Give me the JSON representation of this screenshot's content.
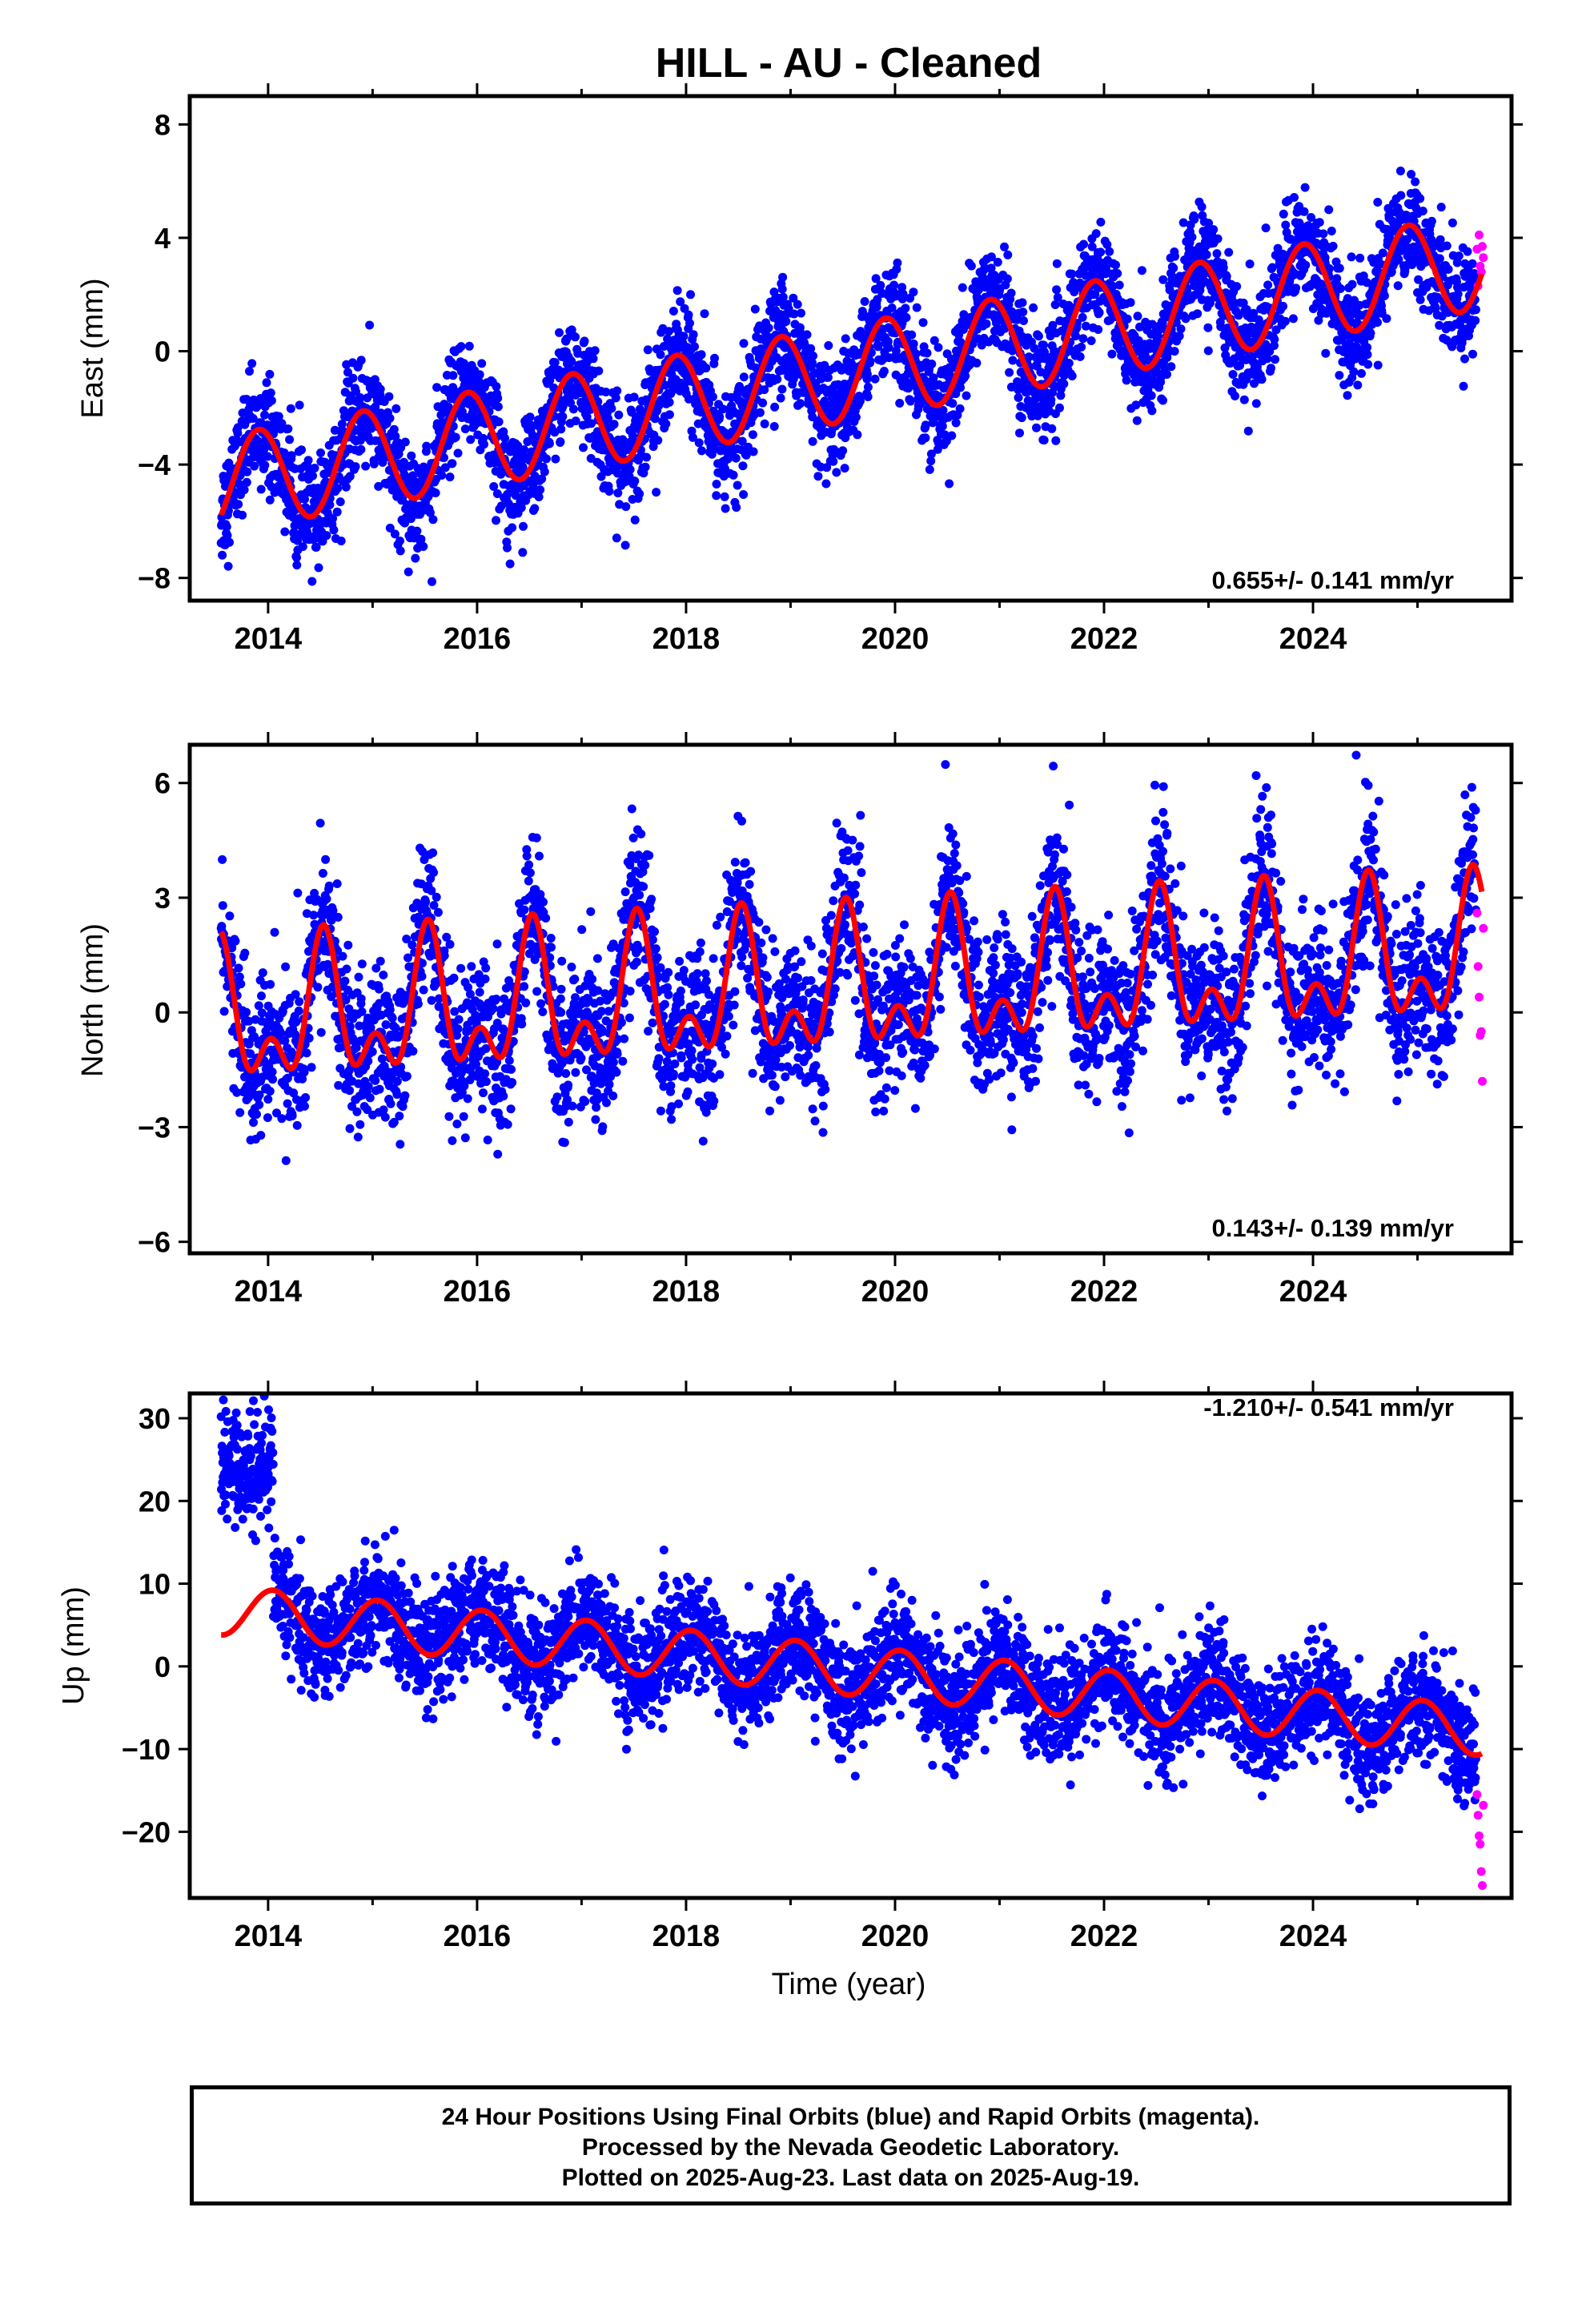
{
  "title": "HILL  - AU - Cleaned",
  "xlabel": "Time (year)",
  "footer": [
    "24 Hour Positions Using Final Orbits (blue) and Rapid Orbits (magenta).",
    "Processed by the Nevada Geodetic Laboratory.",
    "Plotted on 2025-Aug-23. Last data on 2025-Aug-19."
  ],
  "colors": {
    "final": "#0000ff",
    "rapid": "#ff00ff",
    "model": "#ff0000",
    "frame": "#000000"
  },
  "chart_data": [
    {
      "type": "scatter",
      "ylabel": "East (mm)",
      "rate_label": "0.655+/- 0.141 mm/yr",
      "xlim": [
        2013.25,
        2025.9
      ],
      "ylim": [
        -8.8,
        9.0
      ],
      "yticks": [
        -8,
        -4,
        0,
        4,
        8
      ],
      "xticks": [
        2014,
        2016,
        2018,
        2020,
        2022,
        2024
      ],
      "model": {
        "x0": 2013.55,
        "offset": -4.7,
        "rate": 0.655,
        "annual_amp": 1.7,
        "annual_phase": 2013.91,
        "semi_amp": 0.0,
        "semi_phase": 2013.9,
        "scatter_sd": 0.95
      },
      "series": [
        {
          "x": [
            2013.55,
            2013.9,
            2014.4,
            2014.9,
            2015.4,
            2015.9,
            2016.4,
            2016.9,
            2017.4,
            2017.9,
            2018.4,
            2018.9,
            2019.4,
            2019.9,
            2020.4,
            2020.9,
            2021.4,
            2021.9,
            2022.4,
            2022.9,
            2023.4,
            2023.9,
            2024.4,
            2024.9,
            2025.4,
            2025.62
          ],
          "y": [
            -5.6,
            -1.9,
            -5.2,
            -1.2,
            -4.5,
            -0.6,
            -3.9,
            0.1,
            -3.2,
            0.7,
            -2.5,
            1.4,
            -1.9,
            2.1,
            -1.2,
            2.7,
            -0.6,
            3.4,
            0.1,
            4.0,
            0.7,
            4.7,
            1.4,
            5.3,
            2.0,
            2.9
          ]
        }
      ],
      "rapid": {
        "x": [
          2025.57,
          2025.58,
          2025.59,
          2025.6,
          2025.61,
          2025.62,
          2025.63
        ],
        "y": [
          3.6,
          2.3,
          4.1,
          3.0,
          2.8,
          3.7,
          3.3
        ]
      }
    },
    {
      "type": "scatter",
      "ylabel": "North (mm)",
      "rate_label": "0.143+/- 0.139 mm/yr",
      "xlim": [
        2013.25,
        2025.9
      ],
      "ylim": [
        -6.3,
        7.0
      ],
      "yticks": [
        -6,
        -3,
        0,
        3,
        6
      ],
      "xticks": [
        2014,
        2016,
        2018,
        2020,
        2022,
        2024
      ],
      "model": {
        "x0": 2013.55,
        "offset": -0.3,
        "rate": 0.143,
        "annual_amp": 1.45,
        "annual_phase": 2013.53,
        "semi_amp": 1.0,
        "semi_phase": 2013.53,
        "scatter_sd": 1.0
      },
      "series": [
        {
          "x": [
            2013.55,
            2013.9,
            2014.25,
            2014.53,
            2014.8,
            2015.1,
            2015.53,
            2015.9,
            2016.53,
            2017.53,
            2018.53,
            2019.53,
            2020.53,
            2021.53,
            2022.53,
            2023.53,
            2024.53,
            2025.55
          ],
          "y": [
            2.2,
            -2.2,
            -2.0,
            2.4,
            -2.0,
            -1.1,
            2.6,
            -1.9,
            2.7,
            2.8,
            2.9,
            3.1,
            3.2,
            3.4,
            3.5,
            3.7,
            3.8,
            4.0
          ]
        }
      ],
      "rapid": {
        "x": [
          2025.57,
          2025.58,
          2025.59,
          2025.6,
          2025.61,
          2025.62,
          2025.63
        ],
        "y": [
          2.6,
          1.2,
          0.4,
          -0.6,
          -0.5,
          -1.8,
          2.2
        ]
      }
    },
    {
      "type": "scatter",
      "ylabel": "Up (mm)",
      "rate_label": "-1.210+/- 0.541 mm/yr",
      "xlim": [
        2013.25,
        2025.9
      ],
      "ylim": [
        -28,
        33
      ],
      "yticks": [
        -20,
        -10,
        0,
        10,
        20,
        30
      ],
      "xticks": [
        2014,
        2016,
        2018,
        2020,
        2022,
        2024
      ],
      "model": {
        "x0": 2013.55,
        "offset": 6.8,
        "rate": -1.21,
        "annual_amp": 3.0,
        "annual_phase": 2014.05,
        "semi_amp": 0.0,
        "semi_phase": 2014.0,
        "scatter_sd": 3.3
      },
      "series": [
        {
          "x": [
            2013.55,
            2014.05,
            2014.55,
            2015.05,
            2015.55,
            2016.05,
            2016.55,
            2017.05,
            2017.55,
            2018.05,
            2018.55,
            2019.05,
            2019.55,
            2020.05,
            2020.55,
            2021.05,
            2021.55,
            2022.05,
            2022.55,
            2023.05,
            2023.55,
            2024.05,
            2024.55,
            2025.05,
            2025.62
          ],
          "y": [
            4.5,
            10.1,
            3.5,
            8.9,
            2.1,
            7.7,
            0.9,
            6.4,
            -0.3,
            5.3,
            -1.6,
            4.1,
            -2.8,
            2.9,
            -3.9,
            1.5,
            -5.1,
            0.3,
            -6.3,
            -0.9,
            -7.6,
            -2.1,
            -8.8,
            -3.3,
            -10.0
          ]
        }
      ],
      "early_offset": {
        "x_end": 2014.05,
        "y_mean": 23.5,
        "y_sd": 3.5
      },
      "rapid": {
        "x": [
          2025.57,
          2025.58,
          2025.59,
          2025.6,
          2025.61,
          2025.62,
          2025.63
        ],
        "y": [
          -15.5,
          -18.0,
          -20.5,
          -21.5,
          -24.8,
          -26.5,
          -16.8
        ]
      }
    }
  ]
}
